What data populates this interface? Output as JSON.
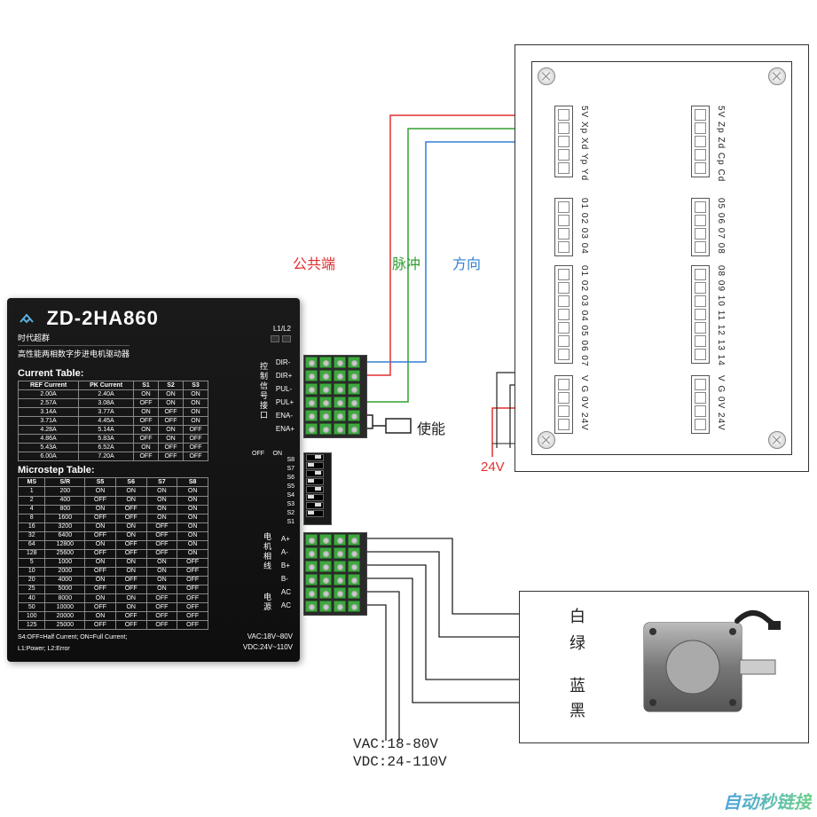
{
  "driver": {
    "model": "ZD-2HA860",
    "brand": "时代超群",
    "subtitle": "高性能两相数字步进电机驱动器",
    "current_table": {
      "title": "Current Table:",
      "headers": [
        "REF Current",
        "PK Current",
        "S1",
        "S2",
        "S3"
      ],
      "rows": [
        [
          "2.00A",
          "2.40A",
          "ON",
          "ON",
          "ON"
        ],
        [
          "2.57A",
          "3.08A",
          "OFF",
          "ON",
          "ON"
        ],
        [
          "3.14A",
          "3.77A",
          "ON",
          "OFF",
          "ON"
        ],
        [
          "3.71A",
          "4.45A",
          "OFF",
          "OFF",
          "ON"
        ],
        [
          "4.28A",
          "5.14A",
          "ON",
          "ON",
          "OFF"
        ],
        [
          "4.86A",
          "5.83A",
          "OFF",
          "ON",
          "OFF"
        ],
        [
          "5.43A",
          "6.52A",
          "ON",
          "OFF",
          "OFF"
        ],
        [
          "6.00A",
          "7.20A",
          "OFF",
          "OFF",
          "OFF"
        ]
      ]
    },
    "microstep_table": {
      "title": "Microstep Table:",
      "headers": [
        "MS",
        "S/R",
        "S5",
        "S6",
        "S7",
        "S8"
      ],
      "rows": [
        [
          "1",
          "200",
          "ON",
          "ON",
          "ON",
          "ON"
        ],
        [
          "2",
          "400",
          "OFF",
          "ON",
          "ON",
          "ON"
        ],
        [
          "4",
          "800",
          "ON",
          "OFF",
          "ON",
          "ON"
        ],
        [
          "8",
          "1600",
          "OFF",
          "OFF",
          "ON",
          "ON"
        ],
        [
          "16",
          "3200",
          "ON",
          "ON",
          "OFF",
          "ON"
        ],
        [
          "32",
          "6400",
          "OFF",
          "ON",
          "OFF",
          "ON"
        ],
        [
          "64",
          "12800",
          "ON",
          "OFF",
          "OFF",
          "ON"
        ],
        [
          "128",
          "25600",
          "OFF",
          "OFF",
          "OFF",
          "ON"
        ],
        [
          "5",
          "1000",
          "ON",
          "ON",
          "ON",
          "OFF"
        ],
        [
          "10",
          "2000",
          "OFF",
          "ON",
          "ON",
          "OFF"
        ],
        [
          "20",
          "4000",
          "ON",
          "OFF",
          "ON",
          "OFF"
        ],
        [
          "25",
          "5000",
          "OFF",
          "OFF",
          "ON",
          "OFF"
        ],
        [
          "40",
          "8000",
          "ON",
          "ON",
          "OFF",
          "OFF"
        ],
        [
          "50",
          "10000",
          "OFF",
          "ON",
          "OFF",
          "OFF"
        ],
        [
          "100",
          "20000",
          "ON",
          "OFF",
          "OFF",
          "OFF"
        ],
        [
          "125",
          "25000",
          "OFF",
          "OFF",
          "OFF",
          "OFF"
        ]
      ]
    },
    "footnote1": "S4:OFF=Half Current; ON=Full Current;",
    "footnote2": "L1:Power; L2:Error",
    "led_label": "L1/L2",
    "signal_terminals": [
      "DIR-",
      "DIR+",
      "PUL-",
      "PUL+",
      "ENA-",
      "ENA+"
    ],
    "signal_cn": "控制信号接口",
    "power_terminals": [
      "A+",
      "A-",
      "B+",
      "B-",
      "AC",
      "AC"
    ],
    "power_cn1": "电机相线",
    "power_cn2": "电源",
    "dip_labels": [
      "S8",
      "S7",
      "S6",
      "S5",
      "S4",
      "S3",
      "S2",
      "S1"
    ],
    "dip_on": "ON",
    "dip_off": "OFF",
    "vac_label": "VAC:18V~80V",
    "vdc_label": "VDC:24V~110V"
  },
  "controller": {
    "conn1": {
      "pins": 5,
      "labels": "5V Xp Xd Yp Yd"
    },
    "conn2": {
      "pins": 5,
      "labels": "5V Zp Zd Cp Cd"
    },
    "conn3": {
      "pins": 4,
      "labels": "01 02 03 04"
    },
    "conn4": {
      "pins": 4,
      "labels": "05 06 07 08"
    },
    "conn5": {
      "pins": 7,
      "labels": "01 02 03 04 05 06 07"
    },
    "conn6": {
      "pins": 7,
      "labels": "08 09 10 11 12 13 14"
    },
    "conn7": {
      "pins": 4,
      "labels": "V  G  0V 24V"
    },
    "conn8": {
      "pins": 4,
      "labels": "V  G  0V 24V"
    },
    "v24": "24V",
    "v0": "0V"
  },
  "wires": {
    "common": {
      "color": "#e03030",
      "label": "公共端"
    },
    "pulse": {
      "color": "#30a030",
      "label": "脉冲"
    },
    "dir": {
      "color": "#3080d0",
      "label": "方向"
    },
    "enable_label": "使能"
  },
  "motor": {
    "colors": [
      "白",
      "绿",
      "蓝",
      "黑"
    ]
  },
  "power_text": {
    "vac": "VAC:18-80V",
    "vdc": "VDC:24-110V"
  },
  "watermark": "自动秒链接"
}
